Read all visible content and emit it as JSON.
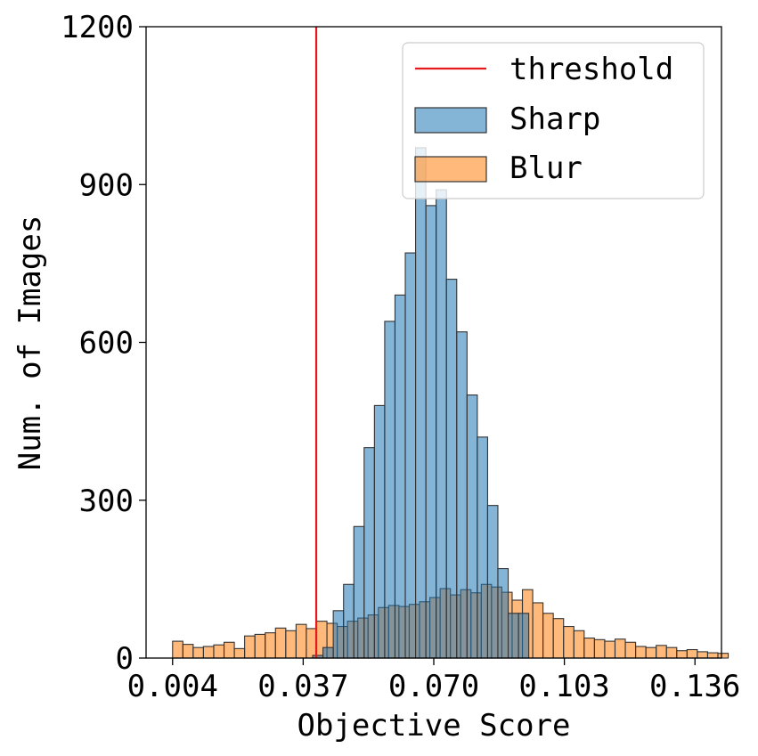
{
  "chart_data": {
    "type": "histogram",
    "title": "",
    "xlabel": "Objective Score",
    "ylabel": "Num. of Images",
    "xlim": [
      -0.0027,
      0.1427
    ],
    "ylim": [
      0,
      1200
    ],
    "bin_width": 0.0026,
    "xticks": [
      0.004,
      0.037,
      0.07,
      0.103,
      0.136
    ],
    "xtick_labels": [
      "0.004",
      "0.037",
      "0.070",
      "0.103",
      "0.136"
    ],
    "yticks": [
      0,
      300,
      600,
      900,
      1200
    ],
    "ytick_labels": [
      "0",
      "300",
      "600",
      "900",
      "1200"
    ],
    "threshold": {
      "name": "threshold",
      "x": 0.0403,
      "color": "#e41a1c"
    },
    "legend": {
      "position": "upper right",
      "entries": [
        "threshold",
        "Sharp",
        "Blur"
      ]
    },
    "series": [
      {
        "name": "Sharp",
        "color": "#1f77b4",
        "x_start": 0.0394,
        "values": [
          5,
          20,
          90,
          140,
          250,
          400,
          480,
          640,
          690,
          770,
          970,
          860,
          890,
          720,
          620,
          500,
          420,
          290,
          170,
          85,
          85
        ]
      },
      {
        "name": "Blur",
        "color": "#ff7f0e",
        "x_start": 0.004,
        "values": [
          32,
          26,
          20,
          22,
          25,
          30,
          18,
          42,
          45,
          48,
          57,
          52,
          64,
          56,
          70,
          66,
          60,
          70,
          76,
          82,
          96,
          100,
          98,
          102,
          107,
          115,
          132,
          120,
          130,
          124,
          140,
          135,
          125,
          110,
          130,
          105,
          85,
          75,
          60,
          52,
          38,
          35,
          32,
          36,
          30,
          22,
          20,
          24,
          20,
          14,
          16,
          12,
          10,
          9
        ]
      }
    ]
  }
}
